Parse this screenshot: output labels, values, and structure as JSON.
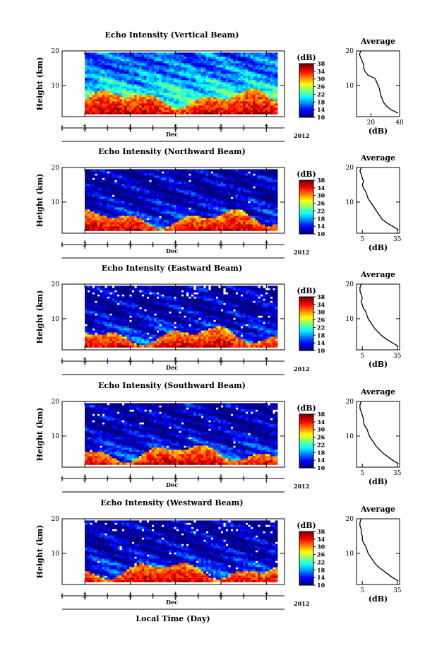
{
  "figure": {
    "xlabel_bottom": "Local Time (Day)",
    "year_label": "2012",
    "month_label": "Dec",
    "colorbar_title": "(dB)",
    "colorbar_ticks": [
      10,
      14,
      18,
      22,
      26,
      30,
      34,
      38
    ],
    "colorbar_tick_labels": [
      "10",
      "14",
      "18",
      "22",
      "26",
      "30",
      "34",
      "38"
    ],
    "height_label": "Height (km)",
    "avg_title": "Average",
    "avg_xlabel": "(dB)"
  },
  "chart_data": [
    {
      "type": "heatmap",
      "title": "Echo Intensity (Vertical Beam)",
      "ylabel": "Height (km)",
      "xlabel": "Dec",
      "x_ticks": [
        3,
        4,
        5,
        6,
        7
      ],
      "x_tick_labels": [
        "3",
        "4",
        "5",
        "6",
        "7"
      ],
      "xlim": [
        2.5,
        7.4
      ],
      "data_xlim": [
        3.0,
        7.2
      ],
      "ylim": [
        1,
        20
      ],
      "y_ticks": [
        10,
        20
      ],
      "y_tick_labels": [
        "10",
        "20"
      ],
      "color_range_db": [
        10,
        38
      ],
      "low_layer_top_km": 5.5,
      "gap_density": 0.0,
      "average_profile": {
        "title": "Average",
        "xlabel": "(dB)",
        "x_ticks": [
          20,
          40
        ],
        "x_tick_labels": [
          "20",
          "40"
        ],
        "xlim": [
          10,
          40
        ],
        "ylim": [
          1,
          20
        ],
        "y_ticks": [
          10,
          20
        ],
        "y_tick_labels": [
          "10",
          "20"
        ],
        "height_km": [
          2,
          3,
          4,
          5,
          6,
          7,
          8,
          9,
          10,
          11,
          12,
          13,
          14,
          15,
          16,
          17,
          18,
          19,
          20
        ],
        "value_db": [
          39,
          34,
          31,
          29,
          28,
          27,
          26.5,
          26,
          25,
          24,
          23,
          18,
          16,
          15,
          15,
          14,
          13,
          12,
          13
        ]
      }
    },
    {
      "type": "heatmap",
      "title": "Echo Intensity (Northward Beam)",
      "ylabel": "Height (km)",
      "xlabel": "Dec",
      "x_ticks": [
        3,
        4,
        5,
        6,
        7
      ],
      "x_tick_labels": [
        "3",
        "4",
        "5",
        "6",
        "7"
      ],
      "xlim": [
        2.5,
        7.4
      ],
      "data_xlim": [
        3.0,
        7.2
      ],
      "ylim": [
        1,
        20
      ],
      "y_ticks": [
        10,
        20
      ],
      "y_tick_labels": [
        "10",
        "20"
      ],
      "color_range_db": [
        10,
        38
      ],
      "low_layer_top_km": 4.5,
      "gap_density": 0.01,
      "average_profile": {
        "title": "Average",
        "xlabel": "(dB)",
        "x_ticks": [
          5,
          35
        ],
        "x_tick_labels": [
          "5",
          "35"
        ],
        "xlim": [
          0,
          37
        ],
        "ylim": [
          1,
          20
        ],
        "y_ticks": [
          10,
          20
        ],
        "y_tick_labels": [
          "10",
          "20"
        ],
        "height_km": [
          2,
          3,
          4,
          5,
          6,
          7,
          8,
          9,
          10,
          11,
          12,
          13,
          14,
          15,
          16,
          17,
          18,
          19,
          20
        ],
        "value_db": [
          36,
          31,
          26,
          22,
          20,
          18,
          16,
          14,
          12,
          10,
          9,
          8,
          6,
          5,
          6,
          5,
          4,
          3,
          4
        ]
      }
    },
    {
      "type": "heatmap",
      "title": "Echo Intensity (Eastward Beam)",
      "ylabel": "Height (km)",
      "xlabel": "Dec",
      "x_ticks": [
        3,
        4,
        5,
        6,
        7
      ],
      "x_tick_labels": [
        "3",
        "4",
        "5",
        "6",
        "7"
      ],
      "xlim": [
        2.5,
        7.4
      ],
      "data_xlim": [
        3.0,
        7.2
      ],
      "ylim": [
        1,
        20
      ],
      "y_ticks": [
        10,
        20
      ],
      "y_tick_labels": [
        "10",
        "20"
      ],
      "color_range_db": [
        10,
        38
      ],
      "low_layer_top_km": 4.5,
      "gap_density": 0.05,
      "average_profile": {
        "title": "Average",
        "xlabel": "(dB)",
        "x_ticks": [
          5,
          35
        ],
        "x_tick_labels": [
          "5",
          "35"
        ],
        "xlim": [
          0,
          37
        ],
        "ylim": [
          1,
          20
        ],
        "y_ticks": [
          10,
          20
        ],
        "y_tick_labels": [
          "10",
          "20"
        ],
        "height_km": [
          2,
          3,
          4,
          5,
          6,
          7,
          8,
          9,
          10,
          11,
          12,
          13,
          14,
          15,
          16,
          17,
          18,
          19,
          20
        ],
        "value_db": [
          36,
          31,
          26,
          22,
          19,
          16,
          14,
          12,
          10,
          9,
          8,
          6,
          5,
          4,
          5,
          4,
          3,
          3,
          4
        ]
      }
    },
    {
      "type": "heatmap",
      "title": "Echo Intensity (Southward Beam)",
      "ylabel": "Height (km)",
      "xlabel": "Dec",
      "x_ticks": [
        3,
        4,
        5,
        6,
        7
      ],
      "x_tick_labels": [
        "3",
        "4",
        "5",
        "6",
        "7"
      ],
      "xlim": [
        2.5,
        7.4
      ],
      "data_xlim": [
        3.0,
        7.2
      ],
      "ylim": [
        1,
        20
      ],
      "y_ticks": [
        10,
        20
      ],
      "y_tick_labels": [
        "10",
        "20"
      ],
      "color_range_db": [
        10,
        38
      ],
      "low_layer_top_km": 4.5,
      "gap_density": 0.025,
      "average_profile": {
        "title": "Average",
        "xlabel": "(dB)",
        "x_ticks": [
          5,
          35
        ],
        "x_tick_labels": [
          "5",
          "35"
        ],
        "xlim": [
          0,
          37
        ],
        "ylim": [
          1,
          20
        ],
        "y_ticks": [
          10,
          20
        ],
        "y_tick_labels": [
          "10",
          "20"
        ],
        "height_km": [
          2,
          3,
          4,
          5,
          6,
          7,
          8,
          9,
          10,
          11,
          12,
          13,
          14,
          15,
          16,
          17,
          18,
          19,
          20
        ],
        "value_db": [
          36,
          31,
          27,
          23,
          20,
          17,
          15,
          13,
          11,
          10,
          9,
          7,
          6,
          6,
          5,
          4,
          3,
          3,
          4
        ]
      }
    },
    {
      "type": "heatmap",
      "title": "Echo Intensity (Westward Beam)",
      "ylabel": "Height (km)",
      "xlabel": "Dec",
      "x_ticks": [
        3,
        4,
        5,
        6,
        7
      ],
      "x_tick_labels": [
        "3",
        "4",
        "5",
        "6",
        "7"
      ],
      "xlim": [
        2.5,
        7.4
      ],
      "data_xlim": [
        3.0,
        7.2
      ],
      "ylim": [
        1,
        20
      ],
      "y_ticks": [
        10,
        20
      ],
      "y_tick_labels": [
        "10",
        "20"
      ],
      "color_range_db": [
        10,
        38
      ],
      "low_layer_top_km": 4.5,
      "gap_density": 0.04,
      "average_profile": {
        "title": "Average",
        "xlabel": "(dB)",
        "x_ticks": [
          5,
          35
        ],
        "x_tick_labels": [
          "5",
          "35"
        ],
        "xlim": [
          0,
          37
        ],
        "ylim": [
          1,
          20
        ],
        "y_ticks": [
          10,
          20
        ],
        "y_tick_labels": [
          "10",
          "20"
        ],
        "height_km": [
          2,
          3,
          4,
          5,
          6,
          7,
          8,
          9,
          10,
          11,
          12,
          13,
          14,
          15,
          16,
          17,
          18,
          19,
          20
        ],
        "value_db": [
          36,
          31,
          27,
          23,
          19,
          16,
          14,
          12,
          10,
          9,
          8,
          6,
          5,
          5,
          4,
          4,
          3,
          3,
          4
        ]
      }
    }
  ]
}
